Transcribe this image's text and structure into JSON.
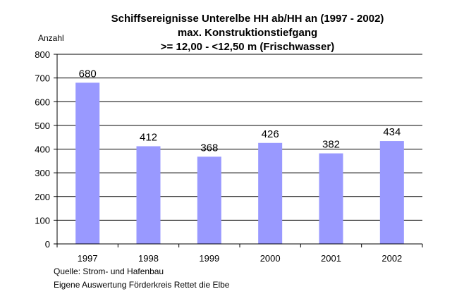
{
  "chart_data": {
    "type": "bar",
    "title": [
      "Schiffsereignisse Unterelbe HH ab/HH an (1997 - 2002)",
      "max. Konstruktionstiefgang",
      ">= 12,00 - <12,50 m (Frischwasser)"
    ],
    "ylabel": "Anzahl",
    "xlabel": "",
    "categories": [
      "1997",
      "1998",
      "1999",
      "2000",
      "2001",
      "2002"
    ],
    "values": [
      680,
      412,
      368,
      426,
      382,
      434
    ],
    "data_labels": [
      "680",
      "412",
      "368",
      "426",
      "382",
      "434"
    ],
    "ylim": [
      0,
      800
    ],
    "yticks": [
      0,
      100,
      200,
      300,
      400,
      500,
      600,
      700,
      800
    ],
    "grid": true,
    "legend": "none",
    "bar_color": "#9999ff",
    "source": [
      "Quelle: Strom- und Hafenbau",
      "Eigene Auswertung Förderkreis Rettet die Elbe"
    ]
  }
}
